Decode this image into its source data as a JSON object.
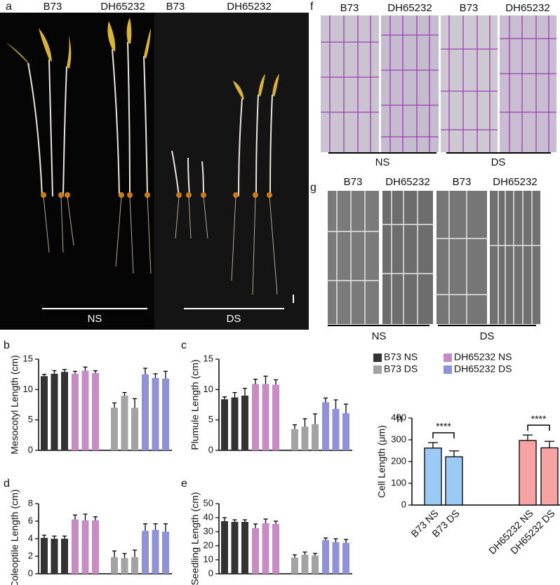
{
  "panels": {
    "a": {
      "letter": "a",
      "labels": [
        "B73",
        "DH65232",
        "B73",
        "DH65232"
      ],
      "groups": [
        "NS",
        "DS"
      ]
    },
    "f": {
      "letter": "f",
      "labels": [
        "B73",
        "DH65232",
        "B73",
        "DH65232"
      ],
      "groups": [
        "NS",
        "DS"
      ]
    },
    "g": {
      "letter": "g",
      "labels": [
        "B73",
        "DH65232",
        "B73",
        "DH65232"
      ],
      "groups": [
        "NS",
        "DS"
      ]
    }
  },
  "legend": [
    {
      "name": "B73 NS",
      "color": "#333333"
    },
    {
      "name": "DH65232 NS",
      "color": "#c98bc4"
    },
    {
      "name": "B73 DS",
      "color": "#a3a3a3"
    },
    {
      "name": "DH65232 DS",
      "color": "#8f92d9"
    }
  ],
  "chart_data": [
    {
      "type": "groupbar",
      "panel": "b",
      "ylabel": "Mesocotyl Length (cm)",
      "ylim": [
        0,
        15
      ],
      "yticks": [
        0,
        5,
        10,
        15
      ],
      "series": [
        {
          "values": [
            12.2,
            12.6,
            12.9
          ],
          "errors": [
            0.3,
            0.5,
            0.4
          ]
        },
        {
          "values": [
            12.6,
            13.1,
            12.7
          ],
          "errors": [
            0.4,
            0.6,
            0.4
          ]
        },
        {
          "values": [
            7.0,
            9.0,
            7.0
          ],
          "errors": [
            0.8,
            0.5,
            1.5
          ]
        },
        {
          "values": [
            12.5,
            11.9,
            11.8
          ],
          "errors": [
            1.0,
            0.7,
            1.2
          ]
        }
      ]
    },
    {
      "type": "groupbar",
      "panel": "c",
      "ylabel": "Plumule Length (cm)",
      "ylim": [
        0,
        15
      ],
      "yticks": [
        0,
        5,
        10,
        15
      ],
      "series": [
        {
          "values": [
            8.4,
            8.7,
            9.0
          ],
          "errors": [
            0.4,
            0.8,
            1.2
          ]
        },
        {
          "values": [
            10.9,
            10.9,
            10.8
          ],
          "errors": [
            0.8,
            1.3,
            0.8
          ]
        },
        {
          "values": [
            3.5,
            3.9,
            4.3
          ],
          "errors": [
            0.7,
            1.3,
            1.7
          ]
        },
        {
          "values": [
            7.9,
            6.8,
            6.1
          ],
          "errors": [
            0.7,
            1.5,
            1.5
          ]
        }
      ]
    },
    {
      "type": "groupbar",
      "panel": "d",
      "ylabel": "Coleoptile Length (cm)",
      "ylim": [
        0,
        8
      ],
      "yticks": [
        0,
        2,
        4,
        6,
        8
      ],
      "series": [
        {
          "values": [
            4.1,
            4.0,
            4.0
          ],
          "errors": [
            0.3,
            0.3,
            0.3
          ]
        },
        {
          "values": [
            6.2,
            6.1,
            6.1
          ],
          "errors": [
            0.5,
            0.7,
            0.4
          ]
        },
        {
          "values": [
            1.9,
            1.8,
            1.9
          ],
          "errors": [
            0.7,
            0.5,
            0.8
          ]
        },
        {
          "values": [
            4.9,
            5.0,
            4.8
          ],
          "errors": [
            0.8,
            0.7,
            0.9
          ]
        }
      ]
    },
    {
      "type": "groupbar",
      "panel": "e",
      "ylabel": "Seedling Length (cm)",
      "ylim": [
        0,
        50
      ],
      "yticks": [
        0,
        10,
        20,
        30,
        40,
        50
      ],
      "series": [
        {
          "values": [
            37.5,
            37,
            37
          ],
          "errors": [
            2.5,
            1.5,
            1.5
          ]
        },
        {
          "values": [
            32.5,
            36,
            35.5
          ],
          "errors": [
            3,
            3,
            2
          ]
        },
        {
          "values": [
            11.5,
            13.5,
            13
          ],
          "errors": [
            2,
            2,
            1.5
          ]
        },
        {
          "values": [
            24,
            22.5,
            22
          ],
          "errors": [
            1.5,
            2.5,
            2.5
          ]
        }
      ]
    },
    {
      "type": "bar",
      "panel": "h",
      "ylabel": "Cell Length (μm)",
      "ylim": [
        0,
        400
      ],
      "yticks": [
        0,
        100,
        200,
        300,
        400
      ],
      "categories": [
        "B73 NS",
        "B73 DS",
        "DH65232 NS",
        "DH65232 DS"
      ],
      "values": [
        262,
        222,
        297,
        263
      ],
      "errors": [
        25,
        27,
        25,
        30
      ],
      "colors": [
        "#9ccaf7",
        "#9ccaf7",
        "#f7a3a3",
        "#f7a3a3"
      ],
      "annotations": [
        "****",
        "****"
      ]
    }
  ]
}
